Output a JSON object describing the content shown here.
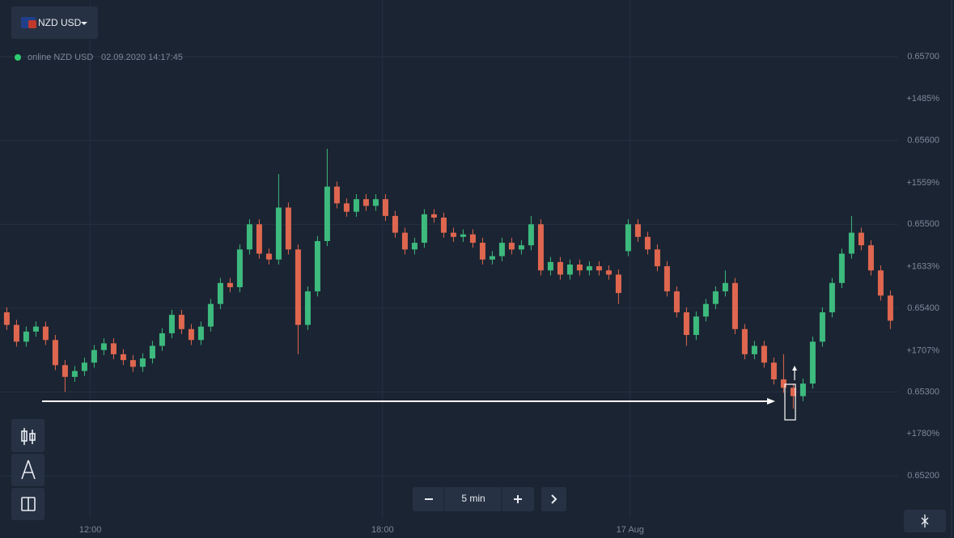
{
  "header": {
    "pair_button": "NZD USD",
    "status": "online NZD USD",
    "datetime": "02.09.2020 14:17:45"
  },
  "controls": {
    "timeframe": "5 min"
  },
  "chart_data": {
    "type": "candlestick",
    "up_color": "#3dba7e",
    "down_color": "#e0674f",
    "grid": true,
    "x": [
      0,
      1,
      2,
      3,
      4,
      5,
      6,
      7,
      8,
      9,
      10,
      11,
      12,
      13,
      14,
      15,
      16,
      17,
      18,
      19,
      20,
      21,
      22,
      23,
      24,
      25,
      26,
      27,
      28,
      29,
      30,
      31,
      32,
      33,
      34,
      35,
      36,
      37,
      38,
      39,
      40,
      41,
      42,
      43,
      44,
      45,
      46,
      47,
      48,
      49,
      50,
      51,
      52,
      53,
      54,
      55,
      56,
      57,
      58,
      59,
      60,
      61,
      62,
      63,
      64,
      65,
      66,
      67,
      68,
      69,
      70,
      71,
      72,
      73,
      74,
      75,
      76,
      77,
      78,
      79,
      80,
      81,
      82,
      83,
      84,
      85,
      86,
      87,
      88,
      89,
      90,
      91
    ],
    "open": [
      0.65395,
      0.6538,
      0.6536,
      0.65372,
      0.65378,
      0.65362,
      0.65332,
      0.65318,
      0.65325,
      0.65335,
      0.6535,
      0.65358,
      0.65345,
      0.65338,
      0.6533,
      0.6534,
      0.65355,
      0.6537,
      0.65392,
      0.65375,
      0.65362,
      0.65378,
      0.65405,
      0.6543,
      0.65425,
      0.6547,
      0.655,
      0.65465,
      0.65458,
      0.6552,
      0.6547,
      0.6538,
      0.6542,
      0.6548,
      0.65545,
      0.65525,
      0.65515,
      0.6553,
      0.65522,
      0.6553,
      0.6551,
      0.6549,
      0.6547,
      0.65478,
      0.65512,
      0.65508,
      0.6549,
      0.65485,
      0.65488,
      0.65478,
      0.65458,
      0.65462,
      0.65478,
      0.6547,
      0.65475,
      0.655,
      0.65445,
      0.65455,
      0.6544,
      0.65452,
      0.65445,
      0.6545,
      0.65445,
      0.6544,
      0.65468,
      0.655,
      0.65485,
      0.6547,
      0.6545,
      0.6542,
      0.65395,
      0.65368,
      0.6539,
      0.65405,
      0.6542,
      0.6543,
      0.65375,
      0.65345,
      0.65355,
      0.65335,
      0.65315,
      0.65305,
      0.65295,
      0.6531,
      0.6536,
      0.65395,
      0.6543,
      0.65465,
      0.6549,
      0.65475,
      0.65445,
      0.65415
    ],
    "high": [
      0.65401,
      0.65386,
      0.65378,
      0.65384,
      0.65384,
      0.65368,
      0.65338,
      0.65331,
      0.65341,
      0.65356,
      0.65364,
      0.65364,
      0.65351,
      0.65344,
      0.65346,
      0.65361,
      0.65376,
      0.65398,
      0.65398,
      0.65381,
      0.65384,
      0.65411,
      0.65436,
      0.65436,
      0.65476,
      0.65506,
      0.65506,
      0.65471,
      0.6556,
      0.65526,
      0.65476,
      0.65426,
      0.65486,
      0.6559,
      0.65551,
      0.65531,
      0.65536,
      0.65536,
      0.65536,
      0.65536,
      0.65516,
      0.65496,
      0.65484,
      0.65518,
      0.65518,
      0.65514,
      0.65496,
      0.65494,
      0.65494,
      0.65484,
      0.65468,
      0.65484,
      0.65484,
      0.65481,
      0.6551,
      0.65506,
      0.65461,
      0.65461,
      0.65458,
      0.65458,
      0.65456,
      0.65456,
      0.65451,
      0.65446,
      0.65506,
      0.65506,
      0.65491,
      0.65476,
      0.65456,
      0.65426,
      0.65401,
      0.65396,
      0.65411,
      0.65426,
      0.65445,
      0.65436,
      0.65381,
      0.65361,
      0.65361,
      0.65341,
      0.65345,
      0.6531,
      0.65316,
      0.65366,
      0.65401,
      0.65436,
      0.65471,
      0.6551,
      0.65496,
      0.65481,
      0.65451,
      0.65421
    ],
    "low": [
      0.65374,
      0.65354,
      0.65354,
      0.65366,
      0.65356,
      0.65326,
      0.653,
      0.65312,
      0.65319,
      0.65329,
      0.65344,
      0.65339,
      0.65332,
      0.65324,
      0.65324,
      0.65334,
      0.65349,
      0.65364,
      0.65369,
      0.65356,
      0.65356,
      0.65372,
      0.65399,
      0.65419,
      0.65419,
      0.65464,
      0.65459,
      0.65452,
      0.65452,
      0.65464,
      0.65345,
      0.65374,
      0.65414,
      0.65474,
      0.65519,
      0.65509,
      0.65509,
      0.65516,
      0.65516,
      0.65504,
      0.65484,
      0.65464,
      0.65464,
      0.65472,
      0.65502,
      0.65484,
      0.65479,
      0.65479,
      0.65472,
      0.65452,
      0.65452,
      0.65456,
      0.65464,
      0.65464,
      0.65469,
      0.65439,
      0.65439,
      0.65434,
      0.65434,
      0.65439,
      0.65439,
      0.65439,
      0.65434,
      0.65405,
      0.65462,
      0.65479,
      0.65464,
      0.65444,
      0.65414,
      0.65389,
      0.65355,
      0.65362,
      0.65384,
      0.65399,
      0.65414,
      0.65369,
      0.65339,
      0.65339,
      0.65329,
      0.65309,
      0.65299,
      0.6528,
      0.65289,
      0.65304,
      0.65354,
      0.65389,
      0.65424,
      0.65459,
      0.65469,
      0.65439,
      0.65409,
      0.65375
    ],
    "close": [
      0.6538,
      0.6536,
      0.65372,
      0.65378,
      0.65362,
      0.65332,
      0.65318,
      0.65325,
      0.65335,
      0.6535,
      0.65358,
      0.65345,
      0.65338,
      0.6533,
      0.6534,
      0.65355,
      0.6537,
      0.65392,
      0.65375,
      0.65362,
      0.65378,
      0.65405,
      0.6543,
      0.65425,
      0.6547,
      0.655,
      0.65465,
      0.65458,
      0.6552,
      0.6547,
      0.6538,
      0.6542,
      0.6548,
      0.65545,
      0.65525,
      0.65515,
      0.6553,
      0.65522,
      0.6553,
      0.6551,
      0.6549,
      0.6547,
      0.65478,
      0.65512,
      0.65508,
      0.6549,
      0.65485,
      0.65488,
      0.65478,
      0.65458,
      0.65462,
      0.65478,
      0.6547,
      0.65475,
      0.655,
      0.65445,
      0.65455,
      0.6544,
      0.65452,
      0.65445,
      0.6545,
      0.65445,
      0.6544,
      0.65418,
      0.655,
      0.65485,
      0.6547,
      0.6545,
      0.6542,
      0.65395,
      0.65368,
      0.6539,
      0.65405,
      0.6542,
      0.6543,
      0.65375,
      0.65345,
      0.65355,
      0.65335,
      0.65315,
      0.65305,
      0.65295,
      0.6531,
      0.6536,
      0.65395,
      0.6543,
      0.65465,
      0.6549,
      0.65475,
      0.65445,
      0.65415,
      0.65385
    ],
    "xlim": [
      -0.7,
      91.8
    ],
    "xticks": [
      {
        "value": 8.6,
        "label": "12:00"
      },
      {
        "value": 38.7,
        "label": "18:00"
      },
      {
        "value": 64.2,
        "label": "17 Aug"
      }
    ],
    "ylim": [
      0.651499,
      0.657676
    ],
    "yticks": [
      {
        "value": 0.657,
        "label": "0.65700"
      },
      {
        "value": 0.656,
        "label": "0.65600"
      },
      {
        "value": 0.655,
        "label": "0.65500"
      },
      {
        "value": 0.654,
        "label": "0.65400"
      },
      {
        "value": 0.653,
        "label": "0.65300"
      },
      {
        "value": 0.652,
        "label": "0.65200"
      }
    ],
    "y2lim": [
      1854,
      1398
    ],
    "y2ticks": [
      {
        "value": 1485,
        "label": "+1485%"
      },
      {
        "value": 1559,
        "label": "+1559%"
      },
      {
        "value": 1633,
        "label": "+1633%"
      },
      {
        "value": 1707,
        "label": "+1707%"
      },
      {
        "value": 1780,
        "label": "+1780%"
      }
    ]
  }
}
